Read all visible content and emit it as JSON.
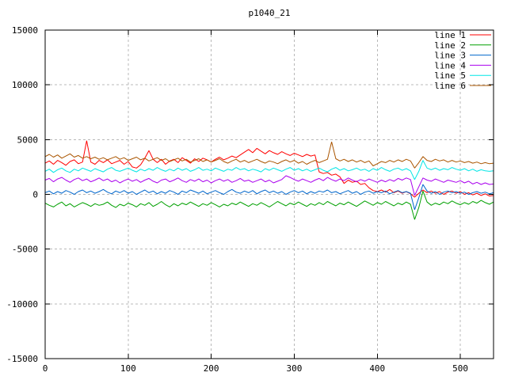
{
  "chart_data": {
    "type": "line",
    "title": "p1040_21",
    "xlabel": "",
    "ylabel": "",
    "xlim": [
      0,
      540
    ],
    "ylim": [
      -15000,
      15000
    ],
    "x_ticks": [
      0,
      100,
      200,
      300,
      400,
      500
    ],
    "y_ticks": [
      -15000,
      -10000,
      -5000,
      0,
      5000,
      10000,
      15000
    ],
    "grid": true,
    "legend": {
      "position": "top-right-inside"
    },
    "x_start": 0,
    "x_step": 5,
    "style": {
      "background": "#ffffff",
      "grid_color": "#b8b8b8",
      "axis_color": "#000000",
      "text_color": "#000000"
    },
    "series": [
      {
        "name": "line 1",
        "color": "#ff0000",
        "values": [
          2850,
          3050,
          2750,
          3100,
          2900,
          2650,
          3000,
          3150,
          2800,
          2950,
          4900,
          2950,
          2750,
          3100,
          2900,
          3150,
          2800,
          2950,
          3100,
          2750,
          3000,
          2500,
          2400,
          2700,
          3300,
          4000,
          3200,
          2900,
          3200,
          2750,
          3050,
          3200,
          2900,
          3350,
          3100,
          2850,
          3250,
          3000,
          3300,
          3150,
          2950,
          3200,
          3400,
          3150,
          3300,
          3500,
          3350,
          3600,
          3850,
          4100,
          3800,
          4200,
          3950,
          3700,
          4000,
          3800,
          3650,
          3900,
          3700,
          3550,
          3750,
          3600,
          3450,
          3650,
          3500,
          3600,
          2050,
          1900,
          2000,
          1750,
          1850,
          1600,
          1000,
          1300,
          1100,
          1200,
          900,
          1000,
          600,
          350,
          250,
          400,
          200,
          450,
          150,
          300,
          100,
          250,
          50,
          -250,
          100,
          400,
          150,
          300,
          100,
          250,
          0,
          200,
          300,
          100,
          250,
          0,
          150,
          -50,
          100,
          -100,
          50,
          -150,
          -100
        ]
      },
      {
        "name": "line 2",
        "color": "#00a000",
        "values": [
          -800,
          -1000,
          -1150,
          -900,
          -700,
          -1050,
          -850,
          -1150,
          -950,
          -750,
          -900,
          -1100,
          -850,
          -1000,
          -900,
          -700,
          -1000,
          -1200,
          -900,
          -1050,
          -800,
          -950,
          -1150,
          -850,
          -1000,
          -750,
          -1100,
          -900,
          -650,
          -950,
          -1150,
          -850,
          -1050,
          -800,
          -950,
          -700,
          -900,
          -1100,
          -850,
          -1000,
          -750,
          -950,
          -1150,
          -900,
          -1050,
          -800,
          -950,
          -700,
          -900,
          -1100,
          -850,
          -1000,
          -750,
          -950,
          -1150,
          -900,
          -650,
          -850,
          -1050,
          -800,
          -950,
          -700,
          -900,
          -1100,
          -850,
          -1000,
          -750,
          -950,
          -650,
          -850,
          -1050,
          -800,
          -950,
          -700,
          -900,
          -1100,
          -850,
          -600,
          -800,
          -1000,
          -750,
          -900,
          -650,
          -850,
          -1050,
          -800,
          -950,
          -700,
          -900,
          -2300,
          -1200,
          300,
          -700,
          -1000,
          -800,
          -950,
          -700,
          -850,
          -600,
          -800,
          -950,
          -750,
          -900,
          -650,
          -800,
          -550,
          -750,
          -900,
          -700
        ]
      },
      {
        "name": "line 3",
        "color": "#0066cc",
        "values": [
          150,
          300,
          50,
          250,
          100,
          350,
          200,
          0,
          250,
          400,
          150,
          300,
          100,
          250,
          450,
          200,
          50,
          300,
          150,
          350,
          100,
          250,
          0,
          200,
          400,
          150,
          300,
          50,
          250,
          100,
          350,
          200,
          0,
          300,
          150,
          400,
          250,
          100,
          300,
          50,
          200,
          350,
          150,
          0,
          250,
          450,
          200,
          100,
          300,
          150,
          350,
          50,
          250,
          400,
          150,
          300,
          100,
          250,
          0,
          200,
          350,
          150,
          300,
          50,
          250,
          100,
          300,
          200,
          400,
          150,
          250,
          50,
          200,
          350,
          100,
          250,
          0,
          200,
          300,
          100,
          250,
          150,
          300,
          50,
          200,
          350,
          150,
          250,
          100,
          -1400,
          -300,
          900,
          300,
          100,
          250,
          0,
          200,
          300,
          150,
          250,
          100,
          200,
          0,
          150,
          250,
          100,
          200,
          50,
          150
        ]
      },
      {
        "name": "line 4",
        "color": "#aa00ee",
        "values": [
          1300,
          1450,
          1150,
          1400,
          1550,
          1300,
          1100,
          1350,
          1500,
          1250,
          1400,
          1150,
          1300,
          1500,
          1250,
          1400,
          1150,
          1300,
          1050,
          1250,
          1400,
          1200,
          1350,
          1100,
          1300,
          1450,
          1200,
          1050,
          1300,
          1400,
          1150,
          1300,
          1500,
          1250,
          1100,
          1350,
          1200,
          1400,
          1150,
          1300,
          1050,
          1250,
          1400,
          1200,
          1350,
          1100,
          1250,
          1450,
          1200,
          1300,
          1100,
          1250,
          1400,
          1150,
          1300,
          1050,
          1200,
          1350,
          1700,
          1550,
          1350,
          1200,
          1400,
          1250,
          1100,
          1300,
          1450,
          1250,
          1550,
          1350,
          1200,
          1400,
          1250,
          1500,
          1300,
          1150,
          1350,
          1200,
          1400,
          1250,
          1100,
          1300,
          1150,
          1350,
          1200,
          1450,
          1300,
          1500,
          1350,
          -100,
          700,
          1500,
          1300,
          1200,
          1400,
          1250,
          1100,
          1300,
          1200,
          1100,
          1250,
          1050,
          1200,
          950,
          1100,
          900,
          1050,
          900,
          950
        ]
      },
      {
        "name": "line 5",
        "color": "#00e5e5",
        "values": [
          2100,
          2300,
          2000,
          2250,
          2400,
          2150,
          2000,
          2300,
          2150,
          2400,
          2250,
          2100,
          2350,
          2200,
          2050,
          2300,
          2450,
          2200,
          2100,
          2250,
          2400,
          2200,
          2050,
          2300,
          2150,
          2350,
          2200,
          2450,
          2250,
          2100,
          2300,
          2150,
          2400,
          2200,
          2350,
          2100,
          2250,
          2450,
          2200,
          2300,
          2150,
          2400,
          2250,
          2100,
          2300,
          2200,
          2450,
          2250,
          2350,
          2150,
          2300,
          2200,
          2050,
          2350,
          2200,
          2400,
          2250,
          2100,
          2300,
          2450,
          2200,
          2350,
          2150,
          2300,
          2100,
          2250,
          2400,
          2200,
          2050,
          2300,
          2450,
          2200,
          2350,
          2150,
          2250,
          2400,
          2200,
          2300,
          2100,
          2350,
          2200,
          2450,
          2250,
          2100,
          2300,
          2400,
          2200,
          2350,
          2150,
          1350,
          2100,
          3100,
          2400,
          2250,
          2400,
          2200,
          2350,
          2250,
          2450,
          2300,
          2200,
          2350,
          2150,
          2300,
          2100,
          2250,
          2150,
          2100,
          2150
        ]
      },
      {
        "name": "line 6",
        "color": "#aa5500",
        "values": [
          3450,
          3650,
          3400,
          3600,
          3300,
          3500,
          3700,
          3400,
          3550,
          3300,
          3450,
          3250,
          3400,
          3200,
          3350,
          3150,
          3300,
          3450,
          3200,
          3350,
          3100,
          3250,
          3400,
          3150,
          3300,
          3050,
          3200,
          3350,
          3100,
          3250,
          3000,
          3150,
          3300,
          3050,
          3200,
          2950,
          3100,
          3250,
          3000,
          3150,
          2950,
          3100,
          3250,
          3000,
          2850,
          3050,
          3200,
          2950,
          3100,
          2900,
          3050,
          3200,
          3000,
          2850,
          3050,
          2950,
          2800,
          3000,
          3150,
          2950,
          3100,
          2850,
          3000,
          2750,
          2950,
          3100,
          2900,
          3050,
          3200,
          4800,
          3250,
          3050,
          3200,
          3000,
          3150,
          2950,
          3100,
          2900,
          3050,
          2600,
          2800,
          3000,
          2900,
          3100,
          2950,
          3150,
          3000,
          3200,
          3050,
          2400,
          2900,
          3450,
          3100,
          3000,
          3200,
          3050,
          3150,
          2950,
          3100,
          2950,
          3050,
          2900,
          3000,
          2850,
          2950,
          2800,
          2900,
          2800,
          2850
        ]
      }
    ]
  }
}
